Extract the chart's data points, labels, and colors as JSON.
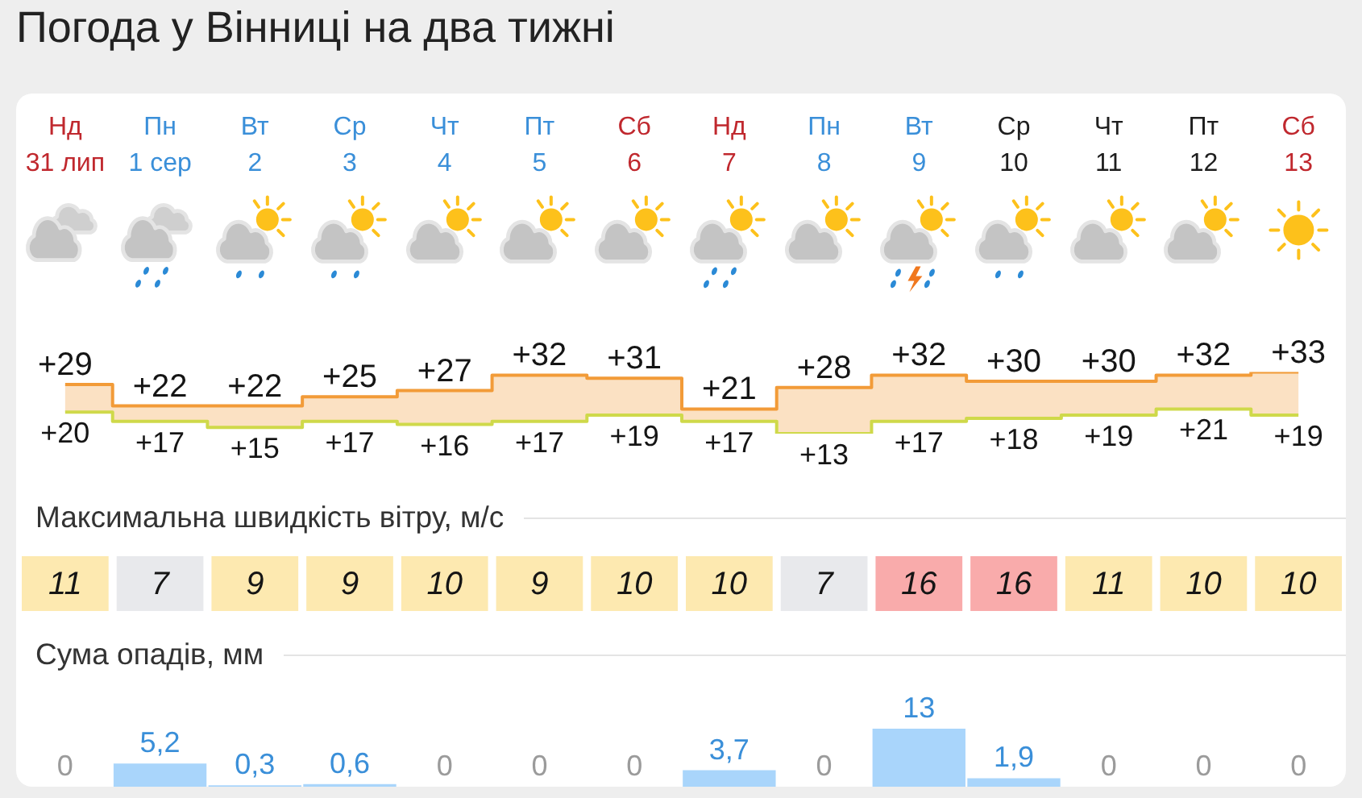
{
  "chart_data": [
    {
      "type": "step",
      "title": "Погода у Вінниці на два тижні",
      "categories": [
        "Нд\n31 лип",
        "Пн\n1 сер",
        "Вт\n2",
        "Ср\n3",
        "Чт\n4",
        "Пт\n5",
        "Сб\n6",
        "Нд\n7",
        "Пн\n8",
        "Вт\n9",
        "Ср\n10",
        "Чт\n11",
        "Пт\n12",
        "Сб\n13"
      ],
      "tick_labels": "x",
      "series": [
        {
          "color": "#f29b38",
          "values": [
            29,
            22,
            22,
            25,
            27,
            32,
            31,
            21,
            28,
            32,
            30,
            30,
            32,
            33
          ],
          "value_labels": [
            "+29",
            "+22",
            "+22",
            "+25",
            "+27",
            "+32",
            "+31",
            "+21",
            "+28",
            "+32",
            "+30",
            "+30",
            "+32",
            "+33"
          ],
          "lower": [
            20,
            17,
            15,
            17,
            16,
            17,
            19,
            17,
            13,
            17,
            18,
            19,
            21,
            19
          ],
          "upper": [
            29,
            22,
            22,
            25,
            27,
            32,
            31,
            21,
            28,
            32,
            30,
            30,
            32,
            33
          ]
        },
        {
          "color": "#cfd94a",
          "values": [
            20,
            17,
            15,
            17,
            16,
            17,
            19,
            17,
            13,
            17,
            18,
            19,
            21,
            19
          ],
          "value_labels": [
            "+20",
            "+17",
            "+15",
            "+17",
            "+16",
            "+17",
            "+19",
            "+17",
            "+13",
            "+17",
            "+18",
            "+19",
            "+21",
            "+19"
          ]
        }
      ]
    },
    {
      "type": "other",
      "title": "Максимальна швидкість вітру, м/с",
      "categories": [
        null,
        null,
        null,
        null,
        null,
        null,
        null,
        null,
        null,
        null,
        null,
        null,
        null,
        null
      ],
      "data_labels": true,
      "values": [
        11,
        7,
        9,
        9,
        10,
        9,
        10,
        10,
        7,
        16,
        16,
        11,
        10,
        10
      ],
      "colors": [
        "#fde9b0",
        "#e8e9ec",
        "#fde9b0",
        "#fde9b0",
        "#fde9b0",
        "#fde9b0",
        "#fde9b0",
        "#fde9b0",
        "#e8e9ec",
        "#f9abab",
        "#f9abab",
        "#fde9b0",
        "#fde9b0",
        "#fde9b0"
      ]
    },
    {
      "type": "bar",
      "title": "Сума опадів, мм",
      "categories": [
        null,
        null,
        null,
        null,
        null,
        null,
        null,
        null,
        null,
        null,
        null,
        null,
        null,
        null
      ],
      "tick_labels": false,
      "values": [
        0,
        5.2,
        0.3,
        0.6,
        0,
        0,
        0,
        3.7,
        0,
        13,
        1.9,
        0,
        0,
        0
      ],
      "color": "#a9d5fb",
      "value_labels": [
        "0",
        "5,2",
        "0,3",
        "0,6",
        "0",
        "0",
        "0",
        "3,7",
        "0",
        "13",
        "1,9",
        "0",
        "0",
        "0"
      ]
    }
  ]
}
